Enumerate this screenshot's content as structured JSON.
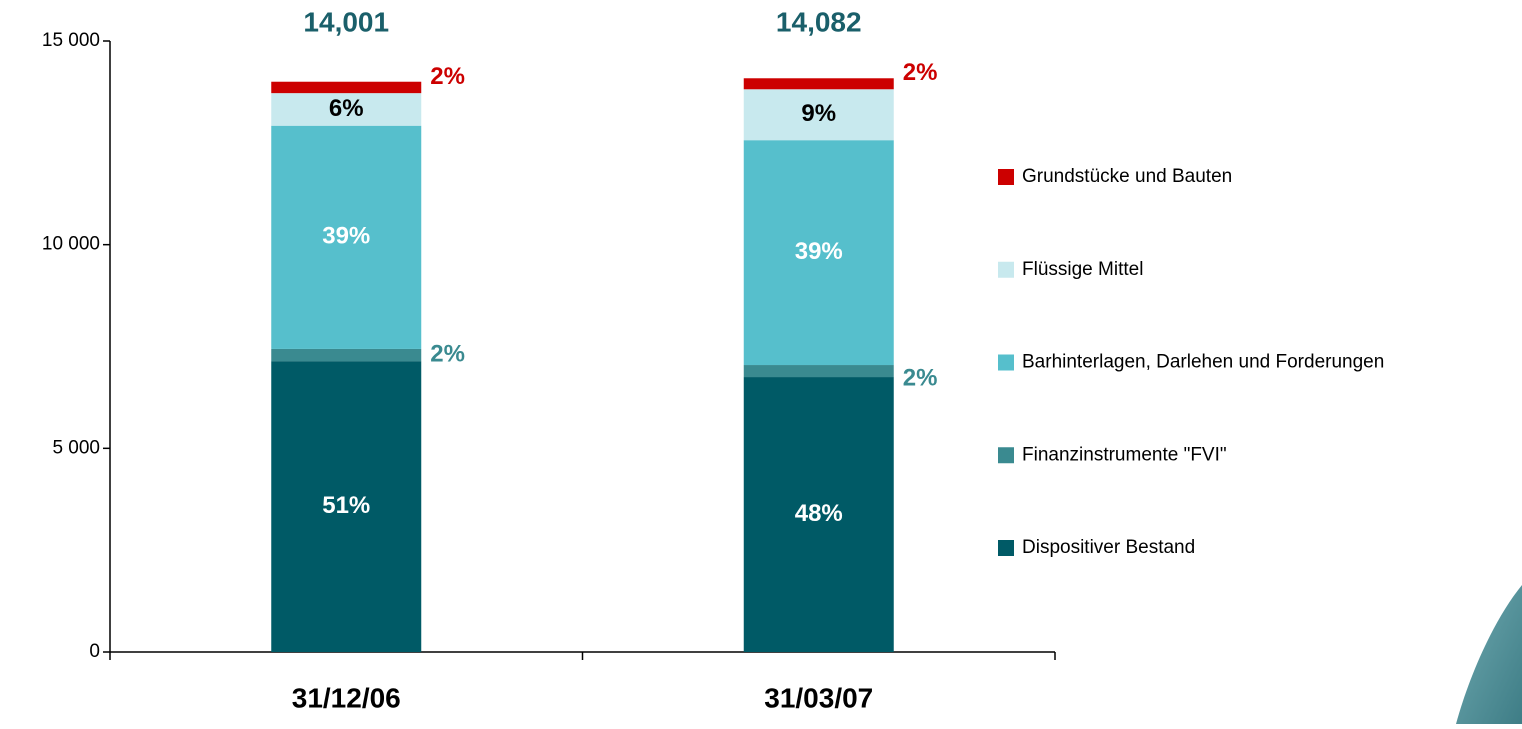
{
  "chart_data": {
    "type": "stacked_bar",
    "categories": [
      "31/12/06",
      "31/03/07"
    ],
    "total_labels": [
      "14,001",
      "14,082"
    ],
    "series": [
      {
        "name": "Dispositiver Bestand",
        "color": "#005a66",
        "values": [
          7140,
          6750
        ],
        "share_labels": [
          "51%",
          "48%"
        ]
      },
      {
        "name": "Finanzinstrumente \"FVI\"",
        "color": "#3a8a90",
        "values": [
          300,
          295
        ],
        "share_labels": [
          "2%",
          "2%"
        ]
      },
      {
        "name": "Barhinterlagen, Darlehen und Forderungen",
        "color": "#56bfcc",
        "values": [
          5480,
          5520
        ],
        "share_labels": [
          "39%",
          "39%"
        ]
      },
      {
        "name": "Flüssige Mittel",
        "color": "#c8e9ee",
        "values": [
          800,
          1250
        ],
        "share_labels": [
          "6%",
          "9%"
        ]
      },
      {
        "name": "Grundstücke und Bauten",
        "color": "#cc0000",
        "values": [
          280,
          270
        ],
        "share_labels": [
          "2%",
          "2%"
        ]
      }
    ],
    "ylim": [
      0,
      15000
    ],
    "yticks": [
      0,
      {
        "value": 5000,
        "label": "5 000"
      },
      {
        "value": 10000,
        "label": "10 000"
      },
      {
        "value": 15000,
        "label": "15 000"
      }
    ],
    "grid": false,
    "legend": "right"
  }
}
